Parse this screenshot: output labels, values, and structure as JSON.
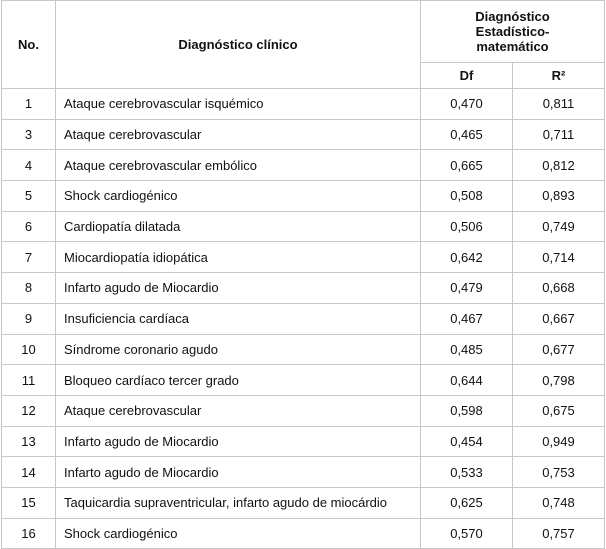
{
  "table": {
    "header": {
      "no": "No.",
      "diagnosis": "Diagnóstico clínico",
      "group": "Diagnóstico Estadístico-matemático",
      "df": "Df",
      "r2": "R²"
    },
    "rows": [
      [
        "1",
        "Ataque cerebrovascular isquémico",
        "0,470",
        "0,811"
      ],
      [
        "3",
        "Ataque cerebrovascular",
        "0,465",
        "0,711"
      ],
      [
        "4",
        "Ataque cerebrovascular embólico",
        "0,665",
        "0,812"
      ],
      [
        "5",
        "Shock cardiogénico",
        "0,508",
        "0,893"
      ],
      [
        "6",
        "Cardiopatía dilatada",
        "0,506",
        "0,749"
      ],
      [
        "7",
        "Miocardiopatía idiopática",
        "0,642",
        "0,714"
      ],
      [
        "8",
        "Infarto agudo de Miocardio",
        "0,479",
        "0,668"
      ],
      [
        "9",
        "Insuficiencia cardíaca",
        "0,467",
        "0,667"
      ],
      [
        "10",
        "Síndrome coronario agudo",
        "0,485",
        "0,677"
      ],
      [
        "11",
        "Bloqueo cardíaco tercer grado",
        "0,644",
        "0,798"
      ],
      [
        "12",
        "Ataque cerebrovascular",
        "0,598",
        "0,675"
      ],
      [
        "13",
        "Infarto agudo de Miocardio",
        "0,454",
        "0,949"
      ],
      [
        "14",
        "Infarto agudo de Miocardio",
        "0,533",
        "0,753"
      ],
      [
        "15",
        "Taquicardia supraventricular, infarto agudo de miocárdio",
        "0,625",
        "0,748"
      ],
      [
        "16",
        "Shock cardiogénico",
        "0,570",
        "0,757"
      ]
    ]
  }
}
